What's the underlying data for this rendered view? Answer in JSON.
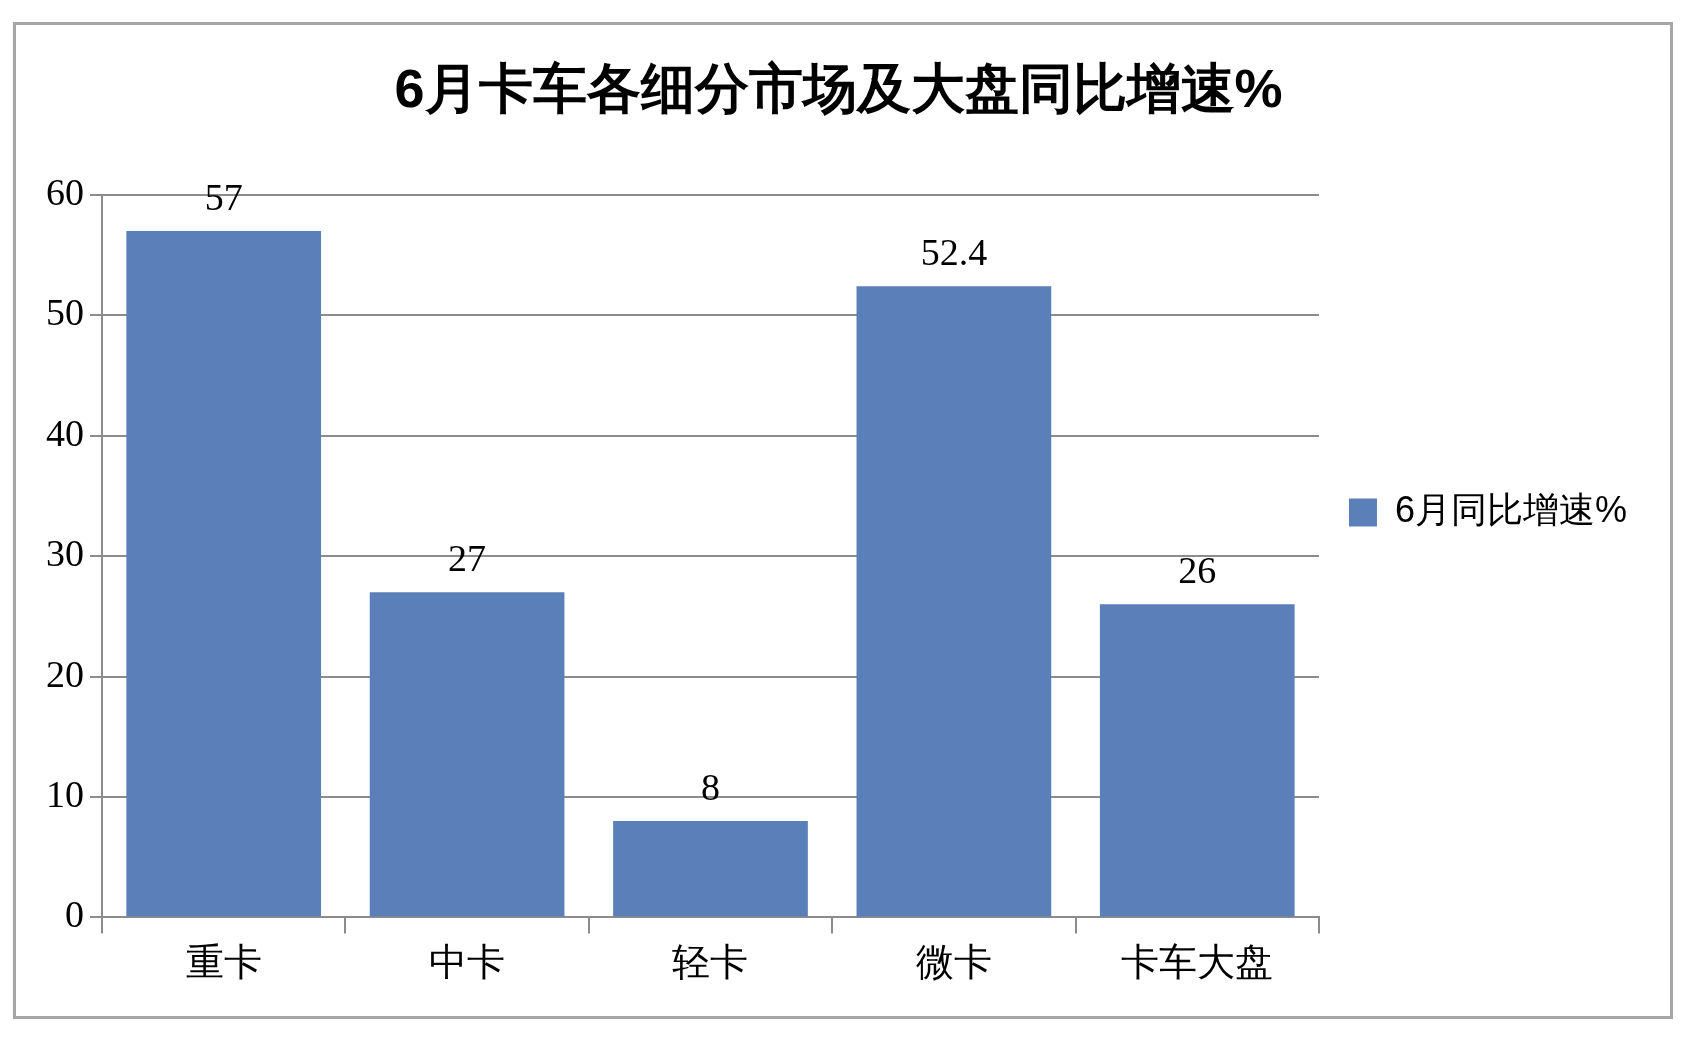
{
  "chart_data": {
    "type": "bar",
    "title": "6月卡车各细分市场及大盘同比增速%",
    "categories": [
      "重卡",
      "中卡",
      "轻卡",
      "微卡",
      "卡车大盘"
    ],
    "series": [
      {
        "name": "6月同比增速%",
        "color": "#5b7fb9",
        "values": [
          57,
          27,
          8,
          52.4,
          26
        ]
      }
    ],
    "ylim": [
      0,
      60
    ],
    "yticks": [
      0,
      10,
      20,
      30,
      40,
      50,
      60
    ],
    "grid": "y",
    "legend": "right",
    "data_labels": true
  }
}
